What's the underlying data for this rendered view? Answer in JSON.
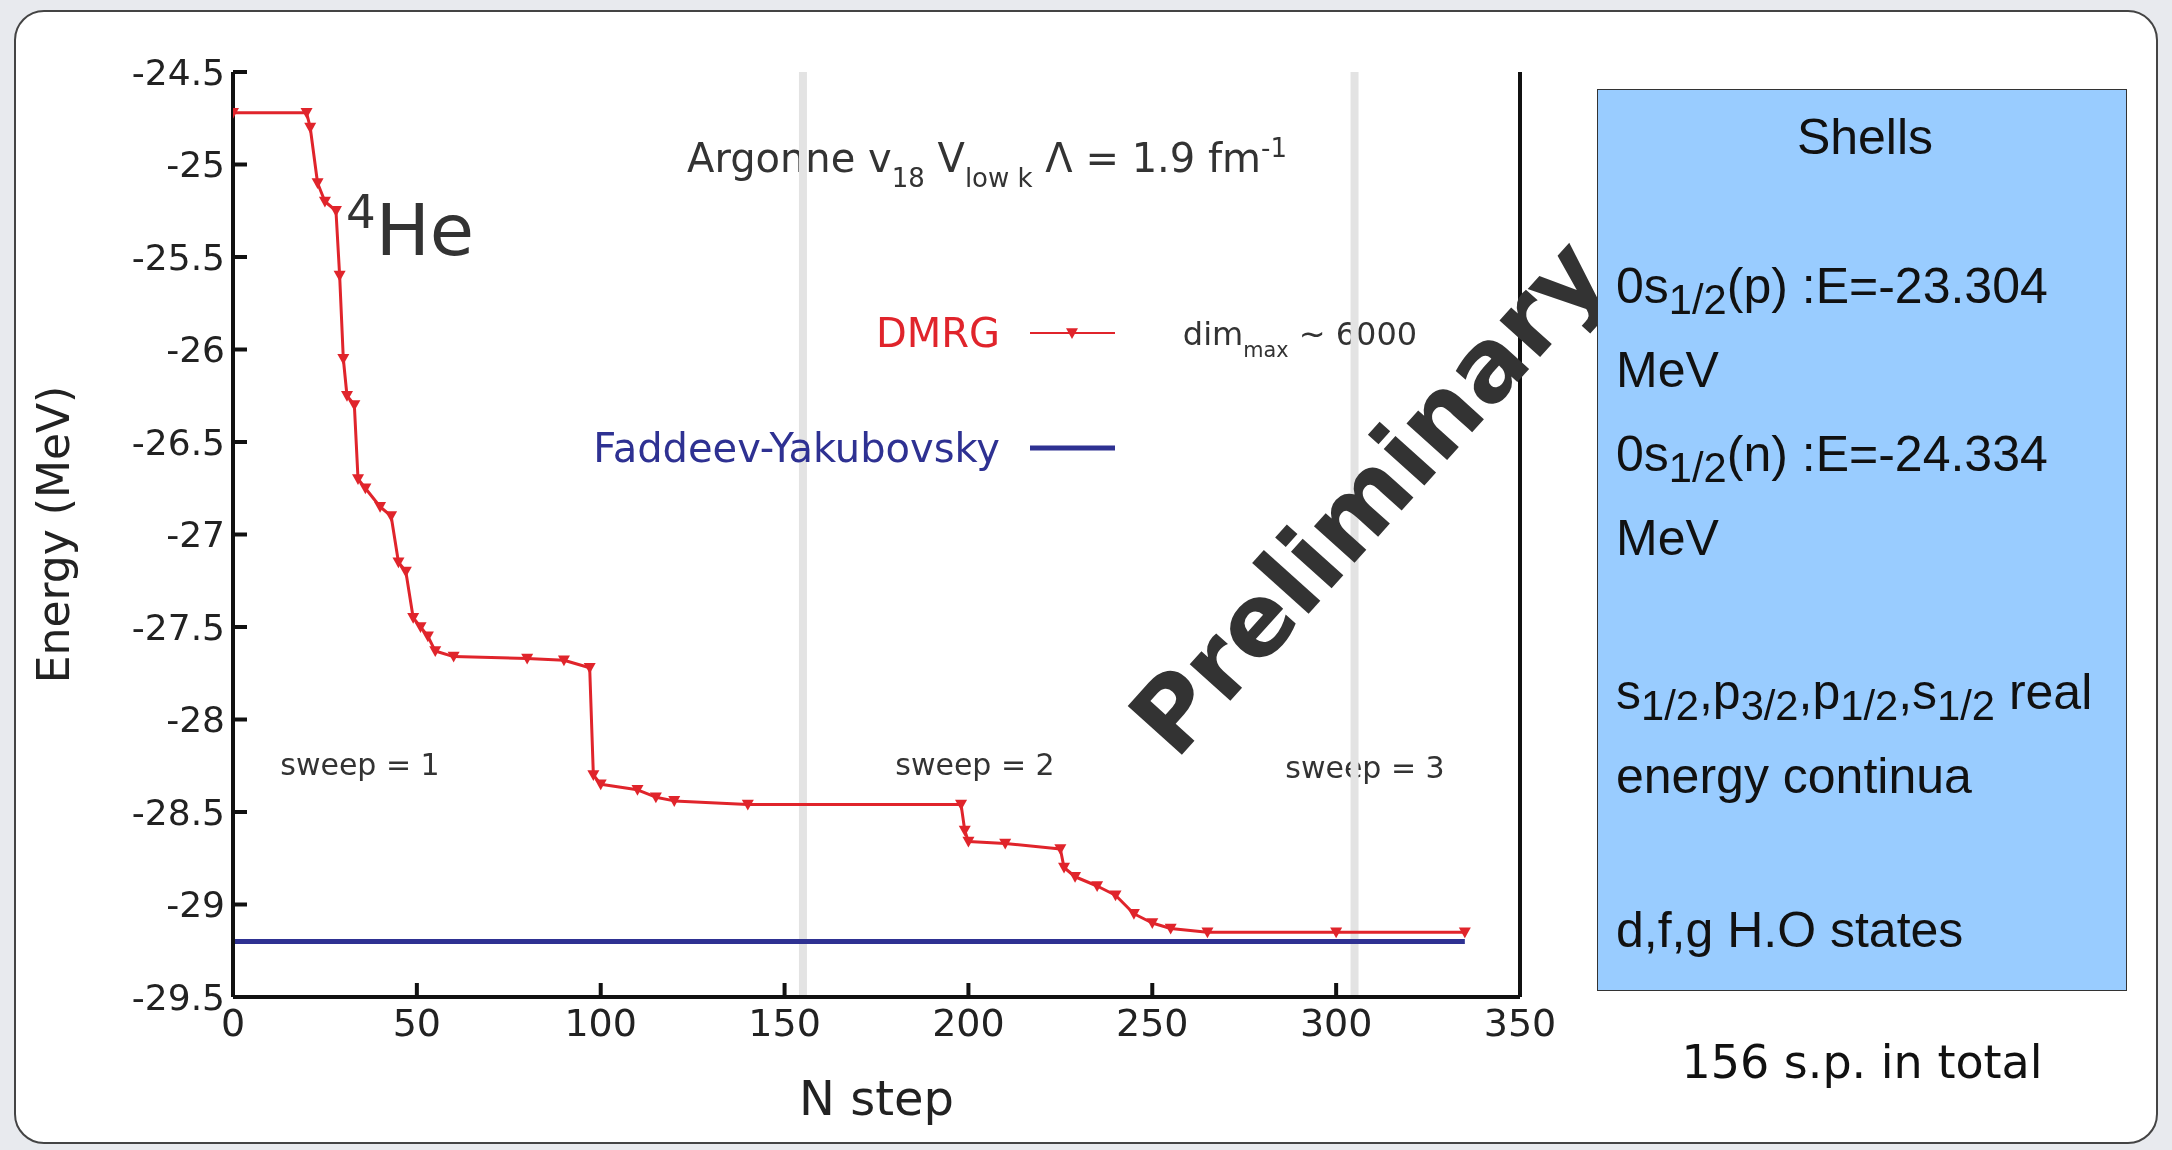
{
  "chart_data": {
    "type": "line",
    "title": "Argonne v$_{18}$   V$_{low k}$ Λ = 1.9 fm$^{-1}$",
    "xlabel": "N step",
    "ylabel": "Energy (MeV)",
    "xlim": [
      0,
      350
    ],
    "xticks": [
      0,
      50,
      100,
      150,
      200,
      250,
      300,
      350
    ],
    "ylim": [
      -29.5,
      -24.5
    ],
    "yticks": [
      -29.5,
      -29,
      -28.5,
      -28,
      -27.5,
      -27,
      -26.5,
      -26,
      -25.5,
      -25,
      -24.5
    ],
    "series": [
      {
        "name": "DMRG",
        "color": "#e0242b",
        "marker": "triangle",
        "x": [
          0,
          20,
          21,
          23,
          25,
          28,
          29,
          30,
          31,
          33,
          34,
          36,
          40,
          43,
          45,
          47,
          49,
          51,
          53,
          55,
          60,
          80,
          90,
          97,
          98,
          100,
          110,
          115,
          120,
          140,
          198,
          199,
          200,
          210,
          225,
          226,
          229,
          235,
          240,
          245,
          250,
          255,
          265,
          300,
          335
        ],
        "values": [
          -24.72,
          -24.72,
          -24.8,
          -25.1,
          -25.2,
          -25.25,
          -25.6,
          -26.05,
          -26.25,
          -26.3,
          -26.7,
          -26.75,
          -26.85,
          -26.9,
          -27.15,
          -27.2,
          -27.45,
          -27.5,
          -27.55,
          -27.63,
          -27.66,
          -27.67,
          -27.68,
          -27.72,
          -28.3,
          -28.35,
          -28.38,
          -28.42,
          -28.44,
          -28.46,
          -28.46,
          -28.6,
          -28.66,
          -28.67,
          -28.7,
          -28.8,
          -28.85,
          -28.9,
          -28.95,
          -29.05,
          -29.1,
          -29.13,
          -29.15,
          -29.15,
          -29.15
        ]
      },
      {
        "name": "Faddeev-Yakubovsky",
        "color": "#2e3192",
        "marker": "none",
        "x": [
          0,
          335
        ],
        "values": [
          -29.2,
          -29.2
        ]
      }
    ],
    "ref_lines": [
      {
        "axis": "x",
        "value": 155,
        "color": "#e3e3e3"
      },
      {
        "axis": "x",
        "value": 305,
        "color": "#e3e3e3"
      }
    ],
    "legend": "top",
    "annotations": [
      "$^{4}$He",
      "dim$_{max}$ ~ 6000",
      "sweep = 1",
      "sweep = 2",
      "sweep = 3",
      "Preliminary",
      "Shells",
      "0s$_{1/2}$(p) :E=-23.304 MeV",
      "0s$_{1/2}$(n) :E=-24.334 MeV",
      "s$_{1/2}$,p$_{3/2}$,p$_{1/2}$,s$_{1/2}$ real energy continua",
      "d,f,g H.O states",
      "156 s.p. in total"
    ]
  }
}
